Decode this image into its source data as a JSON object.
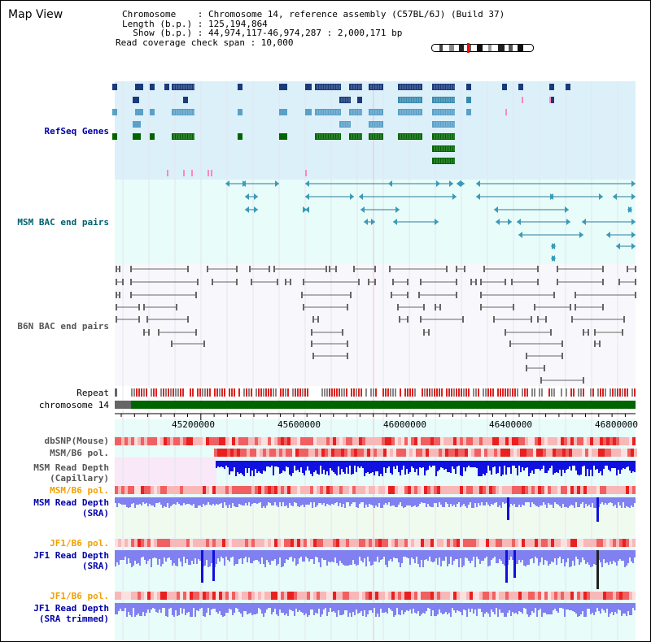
{
  "title": "Map View",
  "header": {
    "chromosome_line": "Chromosome    : Chromosome 14, reference assembly (C57BL/6J) (Build 37)",
    "length_line": "Length (b.p.) : 125,194,864",
    "show_line": "  Show (b.p.) : 44,974,117-46,974,287 : 2,000,171 bp",
    "span_line": "Read coverage check span : 10,000"
  },
  "tracks": {
    "refseq": "RefSeq Genes",
    "msm_bac": "MSM BAC end pairs",
    "b6n_bac": "B6N BAC end pairs",
    "repeat": "Repeat",
    "chromosome": "chromosome 14",
    "dbsnp": "dbSNP(Mouse)",
    "msm_pol_1": "MSM/B6 pol.",
    "msm_depth_cap": "MSM Read Depth\n(Capillary)",
    "msm_pol_2": "MSM/B6 pol.",
    "msm_depth_sra": "MSM Read Depth\n(SRA)",
    "jf1_pol_1": "JF1/B6 pol.",
    "jf1_depth_sra": "JF1 Read Depth\n(SRA)",
    "jf1_pol_2": "JF1/B6 pol.",
    "jf1_depth_trim": "JF1 Read Depth\n(SRA trimmed)"
  },
  "axis": {
    "ticks": [
      "45200000",
      "45600000",
      "46000000",
      "46400000",
      "46800000"
    ]
  },
  "colors": {
    "label_blue": "#0000aa",
    "label_teal": "#006070",
    "label_gray": "#555555",
    "label_orange": "#f0a000",
    "refseq_bg": "#dcf0fa",
    "msm_bg": "#e8fcfa",
    "chrom_green": "#006400",
    "depth_blue": "#1010e0",
    "depth_light": "#8080f0"
  }
}
